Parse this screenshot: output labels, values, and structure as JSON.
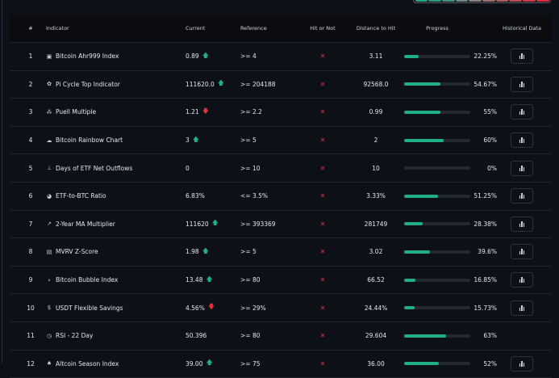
{
  "legend_colors": [
    "#1fa58a",
    "#2e9a82",
    "#4a9080",
    "#6b8a80",
    "#8a8280",
    "#a06e70",
    "#b05e64",
    "#c04c56",
    "#d03a48",
    "#e02c3c"
  ],
  "headers": {
    "num": "#",
    "indicator": "Indicator",
    "current": "Current",
    "reference": "Reference",
    "hit": "Hit or Not",
    "distance": "Distance to Hit",
    "progress": "Progress",
    "historical": "Historical Data"
  },
  "rows": [
    {
      "num": "1",
      "icon": "ahr999-icon",
      "glyph": "▣",
      "name": "Bitcoin Ahr999 Index",
      "current": "0.89",
      "trend": "up",
      "reference": ">= 4",
      "hit": "✕",
      "distance": "3.11",
      "progress": 22.25,
      "pct": "22.25%",
      "has_chart": true
    },
    {
      "num": "2",
      "icon": "cycle-icon",
      "glyph": "✿",
      "name": "Pi Cycle Top Indicator",
      "current": "111620.0",
      "trend": "up",
      "reference": ">= 204188",
      "hit": "✕",
      "distance": "92568.0",
      "progress": 54.67,
      "pct": "54.67%",
      "has_chart": true
    },
    {
      "num": "3",
      "icon": "puell-icon",
      "glyph": "⁂",
      "name": "Puell Multiple",
      "current": "1.21",
      "trend": "down",
      "reference": ">= 2.2",
      "hit": "✕",
      "distance": "0.99",
      "progress": 55,
      "pct": "55%",
      "has_chart": true
    },
    {
      "num": "4",
      "icon": "rainbow-icon",
      "glyph": "☁",
      "name": "Bitcoin Rainbow Chart",
      "current": "3",
      "trend": "up",
      "reference": ">= 5",
      "hit": "✕",
      "distance": "2",
      "progress": 60,
      "pct": "60%",
      "has_chart": true
    },
    {
      "num": "5",
      "icon": "bar-chart-icon",
      "glyph": "⊥",
      "name": "Days of ETF Net Outflows",
      "current": "0",
      "trend": "",
      "reference": ">= 10",
      "hit": "✕",
      "distance": "10",
      "progress": 0,
      "pct": "0%",
      "has_chart": true
    },
    {
      "num": "6",
      "icon": "pie-chart-icon",
      "glyph": "◕",
      "name": "ETF-to-BTC Ratio",
      "current": "6.83%",
      "trend": "",
      "reference": "<= 3.5%",
      "hit": "✕",
      "distance": "3.33%",
      "progress": 51.25,
      "pct": "51.25%",
      "has_chart": true
    },
    {
      "num": "7",
      "icon": "line-chart-icon",
      "glyph": "↗",
      "name": "2-Year MA Multiplier",
      "current": "111620",
      "trend": "up",
      "reference": ">= 393369",
      "hit": "✕",
      "distance": "281749",
      "progress": 28.38,
      "pct": "28.38%",
      "has_chart": true
    },
    {
      "num": "8",
      "icon": "calculator-icon",
      "glyph": "▤",
      "name": "MVRV Z-Score",
      "current": "1.98",
      "trend": "up",
      "reference": ">= 5",
      "hit": "✕",
      "distance": "3.02",
      "progress": 39.6,
      "pct": "39.6%",
      "has_chart": true
    },
    {
      "num": "9",
      "icon": "bubble-icon",
      "glyph": "∘",
      "name": "Bitcoin Bubble Index",
      "current": "13.48",
      "trend": "up",
      "reference": ">= 80",
      "hit": "✕",
      "distance": "66.52",
      "progress": 16.85,
      "pct": "16.85%",
      "has_chart": true
    },
    {
      "num": "10",
      "icon": "dollar-icon",
      "glyph": "$",
      "name": "USDT Flexible Savings",
      "current": "4.56%",
      "trend": "down",
      "reference": ">= 29%",
      "hit": "✕",
      "distance": "24.44%",
      "progress": 15.73,
      "pct": "15.73%",
      "has_chart": true
    },
    {
      "num": "11",
      "icon": "clock-icon",
      "glyph": "◷",
      "name": "RSI - 22 Day",
      "current": "50.396",
      "trend": "",
      "reference": ">= 80",
      "hit": "✕",
      "distance": "29.604",
      "progress": 63,
      "pct": "63%",
      "has_chart": false
    },
    {
      "num": "12",
      "icon": "altcoin-icon",
      "glyph": "♠",
      "name": "Altcoin Season Index",
      "current": "39.00",
      "trend": "up",
      "reference": ">= 75",
      "hit": "✕",
      "distance": "36.00",
      "progress": 52,
      "pct": "52%",
      "has_chart": true
    }
  ]
}
